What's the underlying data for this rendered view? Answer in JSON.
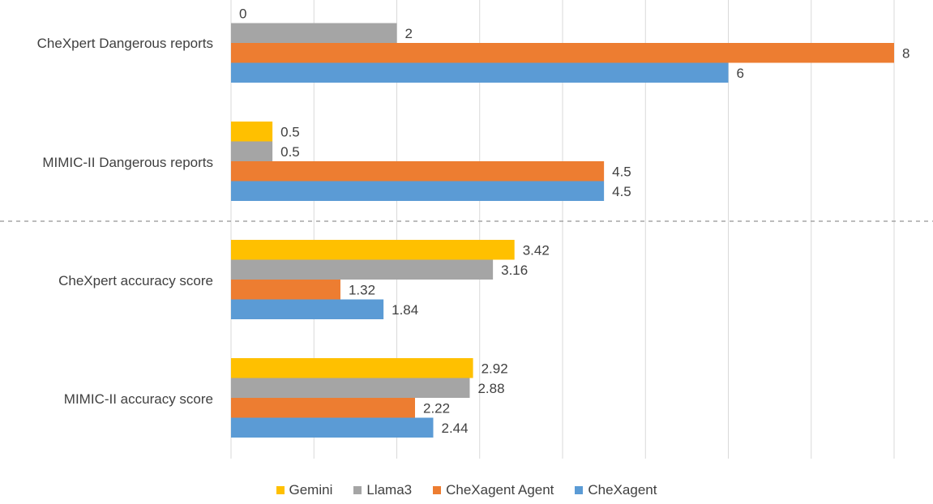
{
  "chart_data": {
    "type": "bar",
    "orientation": "horizontal",
    "categories": [
      "CheXpert Dangerous reports",
      "MIMIC-II Dangerous reports",
      "CheXpert accuracy score",
      "MIMIC-II accuracy score"
    ],
    "series": [
      {
        "name": "Gemini",
        "color": "#ffc000",
        "values": [
          0,
          0.5,
          3.42,
          2.92
        ],
        "labels": [
          "0",
          "0.5",
          "3.42",
          "2.92"
        ]
      },
      {
        "name": "Llama3",
        "color": "#a5a5a5",
        "values": [
          2,
          0.5,
          3.16,
          2.88
        ],
        "labels": [
          "2",
          "0.5",
          "3.16",
          "2.88"
        ]
      },
      {
        "name": "CheXagent Agent",
        "color": "#ed7d31",
        "values": [
          8,
          4.5,
          1.32,
          2.22
        ],
        "labels": [
          "8",
          "4.5",
          "1.32",
          "2.22"
        ]
      },
      {
        "name": "CheXagent",
        "color": "#5b9bd5",
        "values": [
          6,
          4.5,
          1.84,
          2.44
        ],
        "labels": [
          "6",
          "4.5",
          "1.84",
          "2.44"
        ]
      }
    ],
    "xlim": [
      0,
      8
    ],
    "grid": true,
    "separator": "dashed line between dangerous-report groups and accuracy-score groups",
    "legend_position": "bottom"
  }
}
